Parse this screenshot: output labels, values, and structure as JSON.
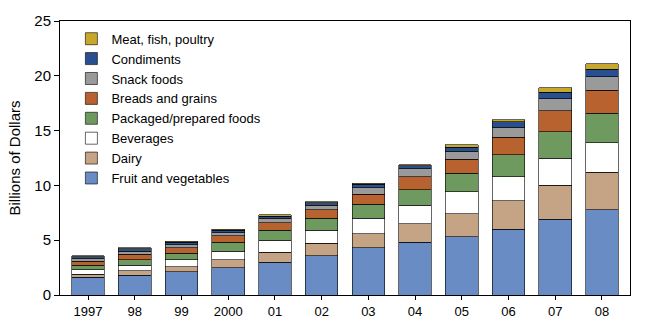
{
  "chart_data": {
    "type": "bar",
    "stacked": true,
    "y_label": "Billions of Dollars",
    "categories": [
      "1997",
      "98",
      "99",
      "2000",
      "01",
      "02",
      "03",
      "04",
      "05",
      "06",
      "07",
      "08"
    ],
    "series": [
      {
        "name": "Fruit and vegetables",
        "color": "#6a8cc4",
        "values": [
          1.6,
          1.8,
          2.1,
          2.5,
          3.0,
          3.6,
          4.3,
          4.8,
          5.3,
          6.0,
          6.9,
          7.8
        ]
      },
      {
        "name": "Dairy",
        "color": "#c4a484",
        "values": [
          0.3,
          0.4,
          0.5,
          0.7,
          0.9,
          1.1,
          1.3,
          1.7,
          2.1,
          2.6,
          3.1,
          3.4
        ]
      },
      {
        "name": "Beverages",
        "color": "#ffffff",
        "values": [
          0.4,
          0.5,
          0.6,
          0.8,
          1.1,
          1.2,
          1.4,
          1.7,
          2.0,
          2.2,
          2.5,
          2.7
        ]
      },
      {
        "name": "Packaged/prepared foods",
        "color": "#6f9a5f",
        "values": [
          0.4,
          0.5,
          0.6,
          0.8,
          0.9,
          1.1,
          1.3,
          1.4,
          1.7,
          2.0,
          2.4,
          2.7
        ]
      },
      {
        "name": "Breads and grains",
        "color": "#b8622f",
        "values": [
          0.4,
          0.5,
          0.5,
          0.6,
          0.7,
          0.8,
          0.9,
          1.2,
          1.3,
          1.6,
          1.9,
          2.1
        ]
      },
      {
        "name": "Snack foods",
        "color": "#9a9a9a",
        "values": [
          0.2,
          0.3,
          0.3,
          0.3,
          0.4,
          0.4,
          0.6,
          0.7,
          0.7,
          0.9,
          1.1,
          1.2
        ]
      },
      {
        "name": "Condiments",
        "color": "#2a4f8f",
        "values": [
          0.2,
          0.2,
          0.2,
          0.2,
          0.2,
          0.2,
          0.3,
          0.3,
          0.4,
          0.5,
          0.6,
          0.7
        ]
      },
      {
        "name": "Meat, fish, poultry",
        "color": "#c8a82a",
        "values": [
          0.1,
          0.1,
          0.1,
          0.1,
          0.1,
          0.1,
          0.1,
          0.1,
          0.2,
          0.2,
          0.4,
          0.5
        ]
      }
    ],
    "ylim": [
      0,
      25
    ],
    "yticks": [
      0,
      5,
      10,
      15,
      20,
      25
    ],
    "grid": false,
    "legend": "upper left"
  }
}
